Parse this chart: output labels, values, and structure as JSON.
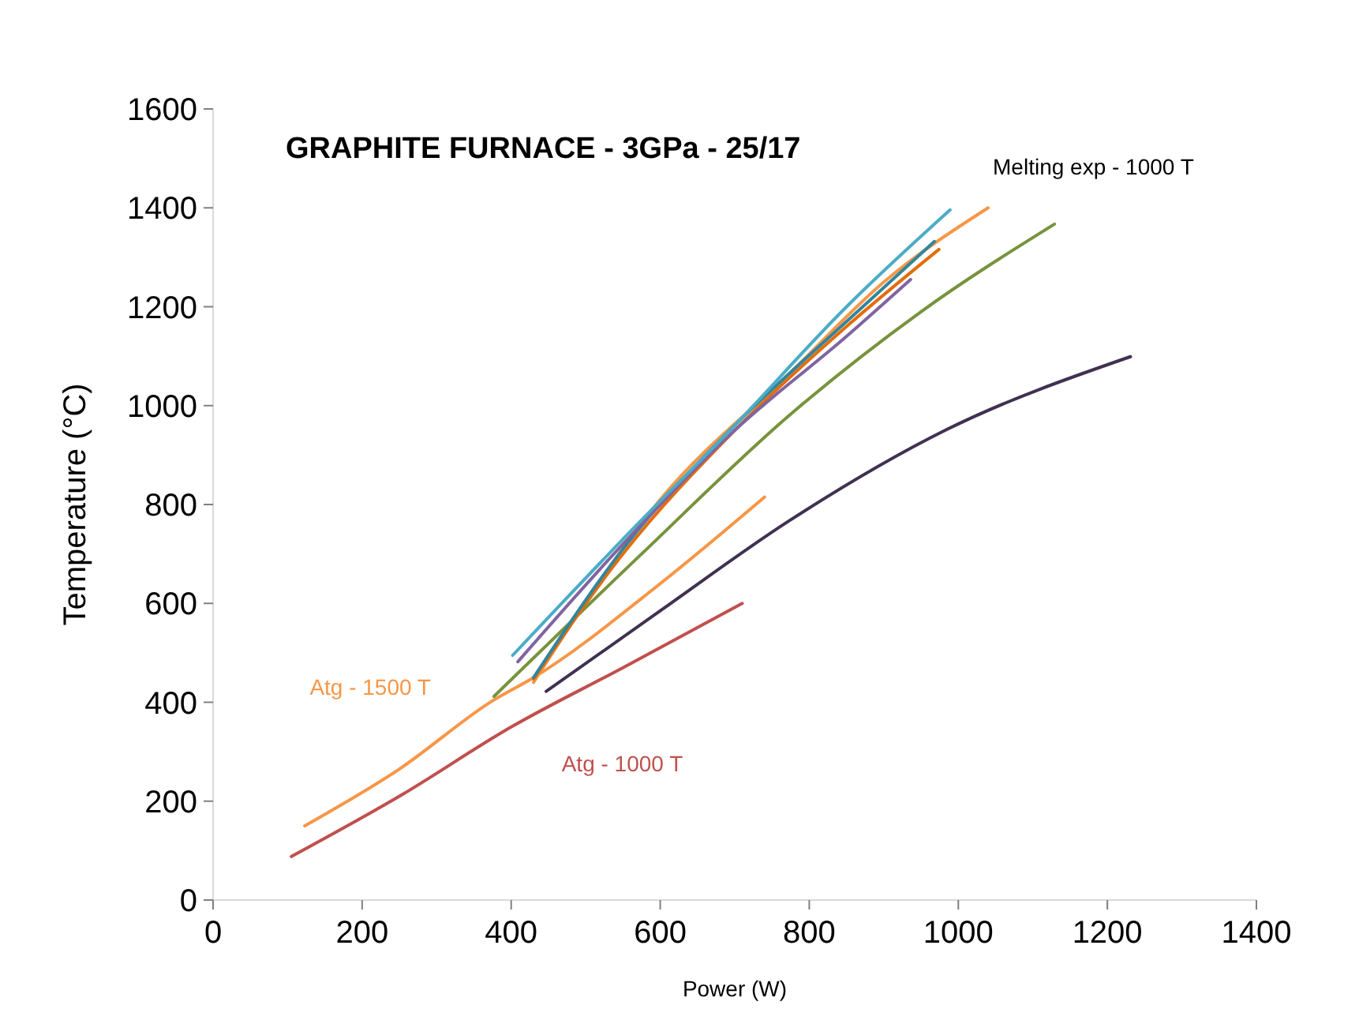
{
  "chart_data": {
    "type": "line",
    "title": "GRAPHITE FURNACE - 3GPa - 25/17",
    "xlabel": "Power (W)",
    "ylabel": "Temperature (°C)",
    "xlim": [
      0,
      1400
    ],
    "xticks": [
      0,
      200,
      400,
      600,
      800,
      1000,
      1200,
      1400
    ],
    "ylim": [
      0,
      1600
    ],
    "yticks": [
      0,
      200,
      400,
      600,
      800,
      1000,
      1200,
      1400,
      1600
    ],
    "grid": false,
    "marker": "none",
    "line_style": "solid",
    "series": [
      {
        "name": "Atg - 1500 T",
        "color": "#f79646",
        "x": [
          123,
          250,
          377,
          430,
          600,
          740
        ],
        "values": [
          150,
          265,
          405,
          450,
          640,
          815
        ]
      },
      {
        "name": "Atg - 1000 T",
        "color": "#c0504d",
        "x": [
          105,
          250,
          400,
          550,
          710
        ],
        "values": [
          88,
          210,
          350,
          470,
          600
        ]
      },
      {
        "color": "#403151",
        "x": [
          447,
          600,
          773,
          985,
          1231
        ],
        "values": [
          422,
          585,
          767,
          952,
          1099
        ]
      },
      {
        "color": "#77933c",
        "x": [
          377,
          575,
          773,
          950,
          1129
        ],
        "values": [
          412,
          700,
          980,
          1190,
          1367
        ]
      },
      {
        "name": "Melting exp - 1000 T",
        "color": "#f79646",
        "x": [
          430,
          600,
          773,
          900,
          1040
        ],
        "values": [
          440,
          810,
          1064,
          1250,
          1400
        ]
      },
      {
        "color": "#e36c09",
        "x": [
          430,
          550,
          700,
          850,
          974
        ],
        "values": [
          447,
          700,
          950,
          1160,
          1316
        ]
      },
      {
        "color": "#31859c",
        "x": [
          430,
          550,
          700,
          850,
          968
        ],
        "values": [
          450,
          710,
          960,
          1170,
          1332
        ]
      },
      {
        "color": "#8064a2",
        "x": [
          409,
          550,
          700,
          850,
          936
        ],
        "values": [
          482,
          720,
          950,
          1140,
          1255
        ]
      },
      {
        "color": "#4bacc6",
        "x": [
          402,
          550,
          700,
          850,
          989
        ],
        "values": [
          495,
          730,
          960,
          1200,
          1396
        ]
      }
    ]
  }
}
